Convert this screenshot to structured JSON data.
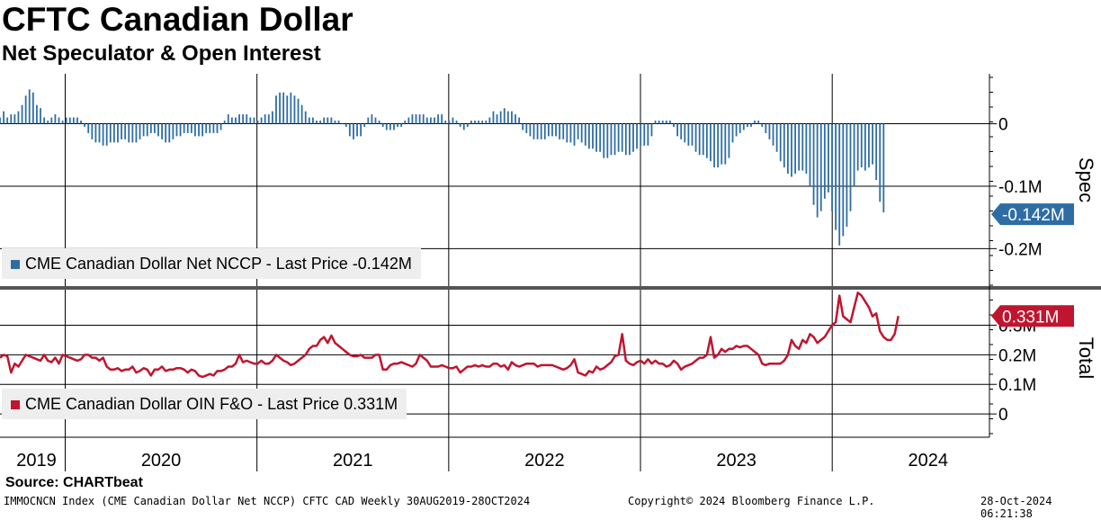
{
  "header": {
    "title": "CFTC Canadian Dollar",
    "subtitle": "Net Speculator & Open Interest"
  },
  "footer": {
    "source": "Source: CHARTbeat",
    "ticker_info": "IMMOCNCN Index (CME Canadian Dollar Net NCCP) CFTC CAD  Weekly 30AUG2019-28OCT2024",
    "copyright": "Copyright© 2024 Bloomberg Finance L.P.",
    "timestamp": "28-Oct-2024 06:21:38"
  },
  "colors": {
    "spec": "#2e6da4",
    "total": "#c0152f",
    "legend_bg": "#eeeeee",
    "divider": "#555555"
  },
  "chart_data": [
    {
      "type": "bar",
      "panel_label": "Spec",
      "legend": "CME Canadian Dollar Net NCCP - Last Price -0.142M",
      "last_value_label": "-0.142M",
      "last_value": -0.142,
      "y_ticks": [
        "0",
        "-0.1M",
        "-0.2M"
      ],
      "y_tick_values": [
        0,
        -0.1,
        -0.2
      ],
      "ylim": [
        -0.26,
        0.08
      ],
      "x_range": [
        2019.66,
        2024.82
      ],
      "x_step_years": 0.0192,
      "x_start": 2019.66,
      "values": [
        0.01,
        0.02,
        0.01,
        0.015,
        0.015,
        0.02,
        0.03,
        0.045,
        0.055,
        0.05,
        0.03,
        0.025,
        0.01,
        0.005,
        0.01,
        0.015,
        0.01,
        0.005,
        0.01,
        0.01,
        0.01,
        0.01,
        0.005,
        -0.005,
        -0.015,
        -0.025,
        -0.03,
        -0.03,
        -0.035,
        -0.035,
        -0.03,
        -0.03,
        -0.03,
        -0.025,
        -0.025,
        -0.03,
        -0.03,
        -0.03,
        -0.025,
        -0.02,
        -0.02,
        -0.015,
        -0.015,
        -0.02,
        -0.025,
        -0.03,
        -0.03,
        -0.025,
        -0.02,
        -0.02,
        -0.015,
        -0.015,
        -0.015,
        -0.02,
        -0.02,
        -0.02,
        -0.015,
        -0.015,
        -0.015,
        -0.015,
        -0.01,
        0.005,
        0.015,
        0.01,
        0.01,
        0.015,
        0.015,
        0.015,
        0.01,
        0.01,
        0.005,
        0.01,
        0.015,
        0.015,
        0.02,
        0.045,
        0.05,
        0.05,
        0.045,
        0.05,
        0.045,
        0.04,
        0.03,
        0.02,
        0.01,
        0.01,
        0.005,
        0.005,
        0.01,
        0.01,
        0.01,
        0.005,
        0.005,
        0.0,
        -0.005,
        -0.02,
        -0.025,
        -0.02,
        -0.02,
        -0.005,
        0.01,
        0.015,
        0.01,
        0.005,
        -0.005,
        -0.01,
        -0.01,
        -0.01,
        -0.005,
        -0.005,
        0.005,
        0.01,
        0.015,
        0.015,
        0.015,
        0.015,
        0.01,
        0.01,
        0.01,
        0.015,
        0.015,
        0.005,
        0.005,
        0.01,
        0.005,
        -0.005,
        -0.01,
        -0.005,
        0.005,
        0.005,
        0.005,
        0.005,
        0.005,
        0.01,
        0.02,
        0.015,
        0.02,
        0.025,
        0.02,
        0.02,
        0.015,
        0.01,
        -0.01,
        -0.015,
        -0.02,
        -0.025,
        -0.025,
        -0.025,
        -0.025,
        -0.02,
        -0.02,
        -0.02,
        -0.025,
        -0.025,
        -0.03,
        -0.03,
        -0.035,
        -0.025,
        -0.03,
        -0.035,
        -0.04,
        -0.04,
        -0.045,
        -0.045,
        -0.055,
        -0.055,
        -0.05,
        -0.05,
        -0.045,
        -0.045,
        -0.05,
        -0.05,
        -0.045,
        -0.04,
        -0.035,
        -0.035,
        -0.035,
        -0.02,
        0.005,
        0.005,
        0.005,
        0.005,
        0.005,
        -0.005,
        -0.02,
        -0.025,
        -0.03,
        -0.035,
        -0.035,
        -0.045,
        -0.05,
        -0.05,
        -0.055,
        -0.06,
        -0.07,
        -0.07,
        -0.065,
        -0.065,
        -0.055,
        -0.03,
        -0.02,
        -0.015,
        -0.01,
        -0.005,
        -0.005,
        0.005,
        0.005,
        -0.005,
        -0.015,
        -0.025,
        -0.035,
        -0.045,
        -0.06,
        -0.07,
        -0.08,
        -0.085,
        -0.08,
        -0.075,
        -0.075,
        -0.08,
        -0.1,
        -0.13,
        -0.15,
        -0.14,
        -0.12,
        -0.11,
        -0.14,
        -0.17,
        -0.195,
        -0.18,
        -0.165,
        -0.14,
        -0.1,
        -0.075,
        -0.07,
        -0.075,
        -0.07,
        -0.065,
        -0.09,
        -0.125,
        -0.142
      ]
    },
    {
      "type": "line",
      "panel_label": "Total",
      "legend": "CME Canadian Dollar OIN F&O - Last Price 0.331M",
      "last_value_label": "0.331M",
      "last_value": 0.331,
      "y_ticks": [
        "0",
        "0.1M",
        "0.2M",
        "0.3M"
      ],
      "y_tick_values": [
        0,
        0.1,
        0.2,
        0.3
      ],
      "ylim": [
        -0.03,
        0.42
      ],
      "x_range": [
        2019.66,
        2024.82
      ],
      "x_step_years": 0.0192,
      "x_start": 2019.66,
      "values": [
        0.19,
        0.2,
        0.195,
        0.14,
        0.17,
        0.16,
        0.18,
        0.2,
        0.195,
        0.19,
        0.185,
        0.18,
        0.2,
        0.18,
        0.175,
        0.19,
        0.17,
        0.2,
        0.195,
        0.19,
        0.185,
        0.18,
        0.185,
        0.2,
        0.2,
        0.19,
        0.19,
        0.18,
        0.19,
        0.16,
        0.15,
        0.15,
        0.155,
        0.145,
        0.15,
        0.15,
        0.16,
        0.14,
        0.145,
        0.155,
        0.15,
        0.13,
        0.15,
        0.15,
        0.16,
        0.145,
        0.15,
        0.15,
        0.155,
        0.155,
        0.15,
        0.14,
        0.15,
        0.145,
        0.13,
        0.125,
        0.13,
        0.135,
        0.13,
        0.145,
        0.145,
        0.15,
        0.16,
        0.16,
        0.17,
        0.2,
        0.175,
        0.18,
        0.175,
        0.17,
        0.17,
        0.18,
        0.17,
        0.17,
        0.18,
        0.2,
        0.19,
        0.18,
        0.175,
        0.165,
        0.17,
        0.18,
        0.19,
        0.2,
        0.22,
        0.23,
        0.23,
        0.25,
        0.26,
        0.24,
        0.265,
        0.24,
        0.23,
        0.22,
        0.21,
        0.2,
        0.195,
        0.195,
        0.2,
        0.19,
        0.19,
        0.19,
        0.2,
        0.2,
        0.15,
        0.15,
        0.165,
        0.17,
        0.17,
        0.175,
        0.17,
        0.165,
        0.16,
        0.17,
        0.2,
        0.19,
        0.18,
        0.16,
        0.16,
        0.16,
        0.165,
        0.16,
        0.155,
        0.155,
        0.16,
        0.14,
        0.15,
        0.16,
        0.16,
        0.165,
        0.16,
        0.165,
        0.16,
        0.16,
        0.17,
        0.17,
        0.16,
        0.165,
        0.15,
        0.175,
        0.165,
        0.16,
        0.165,
        0.17,
        0.17,
        0.17,
        0.16,
        0.165,
        0.165,
        0.165,
        0.165,
        0.16,
        0.155,
        0.15,
        0.155,
        0.165,
        0.185,
        0.14,
        0.135,
        0.13,
        0.145,
        0.14,
        0.16,
        0.15,
        0.155,
        0.165,
        0.175,
        0.195,
        0.2,
        0.27,
        0.18,
        0.17,
        0.165,
        0.175,
        0.18,
        0.17,
        0.185,
        0.17,
        0.18,
        0.17,
        0.17,
        0.16,
        0.165,
        0.18,
        0.17,
        0.15,
        0.16,
        0.165,
        0.17,
        0.18,
        0.19,
        0.19,
        0.2,
        0.26,
        0.19,
        0.2,
        0.22,
        0.21,
        0.22,
        0.22,
        0.23,
        0.225,
        0.23,
        0.23,
        0.22,
        0.21,
        0.2,
        0.17,
        0.165,
        0.17,
        0.17,
        0.17,
        0.17,
        0.18,
        0.2,
        0.25,
        0.23,
        0.22,
        0.25,
        0.24,
        0.27,
        0.26,
        0.24,
        0.25,
        0.26,
        0.28,
        0.3,
        0.31,
        0.4,
        0.33,
        0.32,
        0.31,
        0.36,
        0.41,
        0.4,
        0.38,
        0.36,
        0.33,
        0.34,
        0.28,
        0.26,
        0.25,
        0.25,
        0.27,
        0.331
      ]
    }
  ],
  "x_axis": {
    "labels": [
      "2019",
      "2020",
      "2021",
      "2022",
      "2023",
      "2024"
    ],
    "label_positions": [
      2019.85,
      2020.5,
      2021.5,
      2022.5,
      2023.5,
      2024.5
    ],
    "year_boundaries": [
      2020,
      2021,
      2022,
      2023,
      2024
    ]
  }
}
